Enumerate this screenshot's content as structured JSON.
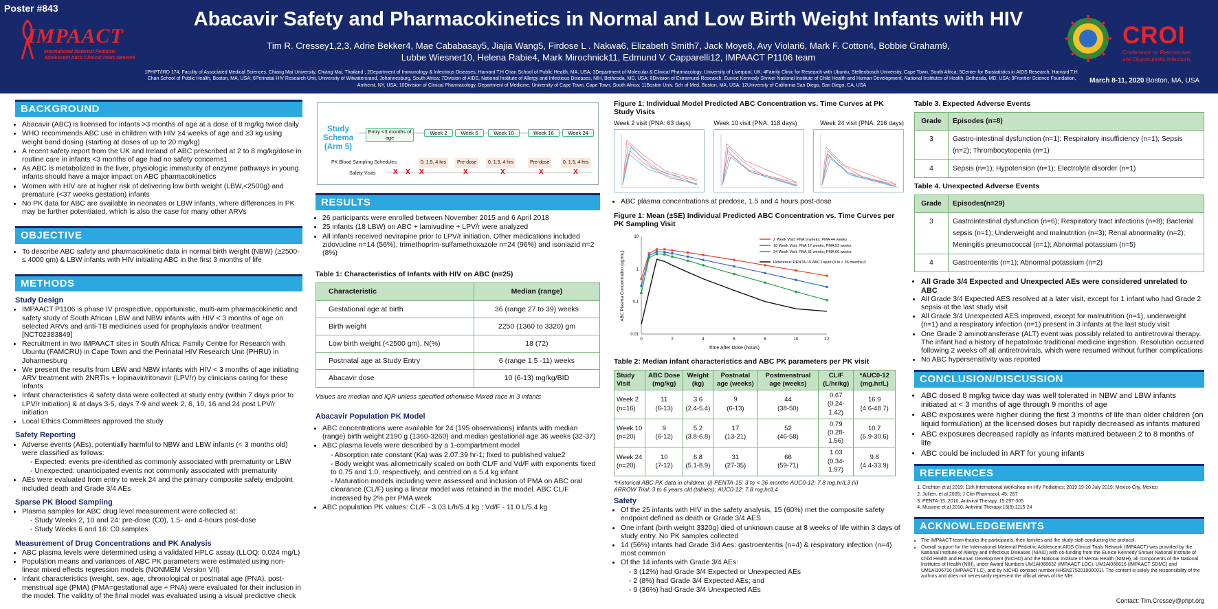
{
  "header": {
    "poster_number": "Poster #843",
    "logo_name": "IMPAACT",
    "logo_sub1": "International Maternal Pediatric",
    "logo_sub2": "Adolescent AIDS Clinical Trials Network",
    "title": "Abacavir Safety and Pharmacokinetics in Normal and Low Birth Weight Infants with HIV",
    "authors_line1": "Tim R. Cressey1,2,3, Adrie Bekker4, Mae Cababasay5, Jiajia Wang5, Firdose L . Nakwa6, Elizabeth Smith7, Jack Moye8, Avy Violari6, Mark F. Cotton4, Bobbie Graham9,",
    "authors_line2": "Lubbe Wiesner10, Helena Rabie4, Mark Mirochnick11, Edmund V. Capparelli12, IMPAACT P1106 team",
    "affiliations": "1PHPT/IRD 174, Faculty of Associated Medical Sciences, Chiang Mai University, Chiang Mai, Thailand ; 2Department of Immunology & Infectious Diseases, Harvard T.H Chan School of Public Health, MA, USA; 3Department of Molecular & Clinical Pharmacology, University of Liverpool, UK; 4Family Clinic for Research with Ubuntu, Stellenbosch University, Cape Town, South Africa; 5Center for Biostatistics in AIDS Research, Harvard T.H. Chan School of Public Health, Boston, MA, USA; 6Perinatal HIV Research Unit, University of Witwatersrand, Johannesburg, South Africa; 7Division of AIDS, National Institute of Allergy and Infectious Diseases, NIH, Bethesda, MD, USA; 8Division of Extramural Research, Eunice Kennedy Shriver National Institute of Child Health and Human Development, National Institutes of Health, Bethesda, MD, USA; 9Frontier Science Foundation, Amherst, NY, USA; 10Division of Clinical Pharmacology, Department of Medicine, University of Cape Town, Cape Town, South Africa; 11Boston Univ. Sch of Med, Boston, MA, USA; 12University of California San Diego, San Diego, CA, USA",
    "croi_name": "CROI",
    "croi_sub1": "Conference on Retroviruses",
    "croi_sub2": "and Opportunistic Infections",
    "croi_date_bold": "March 8-11, 2020",
    "croi_date_rest": " Boston, MA, USA"
  },
  "background": {
    "heading": "BACKGROUND",
    "bullets": [
      "Abacavir (ABC) is licensed for infants >3 months of age at a dose of 8 mg/kg twice daily",
      "WHO recommends ABC use in children with HIV ≥4 weeks of age and ≥3 kg using weight band dosing (starting at doses of up to 20 mg/kg)",
      "A recent safety report from the UK and Ireland of ABC prescribed at 2 to 8 mg/kg/dose in routine care in infants <3 months of age had no safety concerns1",
      "As ABC is metabolized in the liver, physiologic immaturity of enzyme pathways in young infants should have a major impact on ABC pharmacokinetics",
      "Women with HIV are at higher risk of delivering low birth weight (LBW,<2500g) and premature (<37 weeks gestation) infants",
      "No PK data for ABC are available in neonates or LBW infants, where differences in PK may be further potentiated, which is also the case for many other ARVs"
    ]
  },
  "objective": {
    "heading": "OBJECTIVE",
    "bullets": [
      "To describe ABC safety and pharmacokinetic data in normal birth weight (NBW) (≥2500-≤ 4000 gm) & LBW infants with HIV initiating ABC in the first 3 months of life"
    ]
  },
  "methods": {
    "heading": "METHODS",
    "study_design_title": "Study Design",
    "study_design": [
      "IMPAACT P1106  is phase IV prospective, opportunistic, multi-arm pharmacokinetic and safety study of South African LBW and NBW infants with HIV < 3 months of age on selected ARVs and anti-TB medicines used for prophylaxis and/or treatment [NCT02383849]",
      "Recruitment in two IMPAACT sites in South Africa: Family Centre for Research with Ubuntu (FAMCRU) in Cape Town and the Perinatal HIV Research Unit (PHRU) in Johannesburg",
      "We present the results from LBW and NBW infants with HIV < 3 months of age initiating ARV treatment with 2NRTIs + lopinavir/ritonavir (LPV/r) by clinicians caring for these infants",
      "Infant characteristics & safety data were collected at study entry (within 7 days prior to LPV/r initiation) & at days 3-5, days 7-9 and week 2, 6, 10, 16 and 24 post LPV/r initiation",
      "Local Ethics Committees approved the study"
    ],
    "safety_title": "Safety Reporting",
    "safety_1": "Adverse events (AEs), potentially harmful to NBW and LBW infants (< 3 months old) were classified as follows:",
    "safety_sub": [
      "Expected: events pre-identified as commonly associated with prematurity or LBW",
      "Unexpected: unanticipated events not commonly associated with prematurity"
    ],
    "safety_2": "AEs were evaluated from entry to week 24 and the primary composite safety endpoint included death and Grade 3/4 AEs",
    "sparse_title": "Sparse PK Blood Sampling",
    "sparse_1": "Plasma samples for ABC drug level measurement were collected at:",
    "sparse_sub": [
      "Study Weeks 2, 10 and 24: pre-dose (C0), 1.5- and 4-hours post-dose",
      "Study Weeks 6 and 16: C0 samples"
    ],
    "meas_title": "Measurement of Drug Concentrations and PK Analysis",
    "meas": [
      "ABC plasma levels were determined using a validated HPLC assay (LLOQ: 0.024 mg/L)",
      "Population means and variances of ABC PK parameters were estimated using non-linear mixed effects regression models (NONMEM Version VII)",
      "Infant characteristics (weight, sex, age, chronological or postnatal age (PNA), post-menstrual age (PMA) (PMA=gestational age + PNA) were evaluated for their inclusion in the model. The validity of the final model was evaluated using a visual predictive check"
    ]
  },
  "schema": {
    "title": "Study Schema (Arm 5)",
    "visits": [
      "Entry <3 months of age",
      "Week 2",
      "Week 6",
      "Week 10",
      "Week 16",
      "Week 24"
    ],
    "pk_label": "PK Blood Sampling Schedules",
    "pk": [
      "0, 1.5, 4 hrs",
      "Pre-dose",
      "0, 1.5, 4 hrs",
      "Pre-dose",
      "0, 1.5, 4 hrs"
    ],
    "safety_label": "Safety Visits",
    "safety_mark": "X"
  },
  "results": {
    "heading": "RESULTS",
    "bullets": [
      "26 participants were enrolled between November 2015 and 6 April 2018",
      "25 infants (18 LBW) on ABC + lamivudine + LPV/r were analyzed",
      "All infants received nevirapine prior to LPV/r initiation. Other medications included zidovudine n=14 (56%), trimethoprim-sulfamethoxazole n=24 (96%) and isoniazid n=2 (8%)"
    ],
    "table1_caption": "Table 1: Characteristics of Infants with HIV on ABC (n=25)",
    "table1_headers": [
      "Characteristic",
      "Median (range)"
    ],
    "table1_rows": [
      [
        "Gestational age at birth",
        "36 (range 27 to 39) weeks"
      ],
      [
        "Birth weight",
        "2250 (1360 to 3320) gm"
      ],
      [
        "Low birth weight (<2500 gm), N(%)",
        "18 (72)"
      ],
      [
        "Postnatal age at Study Entry",
        "6 (range 1.5 -11) weeks"
      ],
      [
        "Abacavir dose",
        "10 (6-13) mg/kg/BID"
      ]
    ],
    "table1_note": "Values are median and IQR unless specified otherwise Mixed race in 3 infants",
    "poppk_title": "Abacavir Population PK Model",
    "poppk_1": "ABC concentrations were available for 24 (195 observations) infants with median (range) birth weight 2190 g (1360-3260) and median gestational age 36 weeks (32-37)",
    "poppk_2": "ABC plasma levels were described by a 1-compartment model",
    "poppk_sub": [
      "Absorption rate constant (Ka) was 2.07.39 hr-1; fixed to published value2",
      "Body weight was allometrically scaled on both CL/F and Vd/F with exponents fixed to 0.75 and 1.0, respectively, and centred on a 5.4 kg infant",
      "Maturation models including were assessed and inclusion of PMA on ABC oral clearance (CL/F) using a linear model was retained in the model. ABC CL/F increased by 2% per PMA week"
    ],
    "poppk_3": "ABC population PK values: CL/F - 3.03 L/h/5.4 kg ; Vd/F - 11.0 L/5.4 kg"
  },
  "figure1": {
    "caption": "Figure 1: Individual Model Predicted ABC Concentration vs. Time Curves at PK Study Visits",
    "panels": [
      "Week 2 visit (PNA: 63 days)",
      "Week 10 visit (PNA: 118 days)",
      "Week 24 visit (PNA: 216 days)"
    ],
    "bullet": "ABC plasma concentrations at predose, 1.5 and 4 hours post-dose"
  },
  "figure2": {
    "caption": "Figure 1: Mean (±SE) Individual Predicted ABC Concentration vs. Time Curves per PK Sampling Visit",
    "xlabel": "Time After Dose (hours)",
    "ylabel": "ABC Plasma Concentration (ug/mL)",
    "legend": [
      "2 Week Visit:  PNA 9 weeks;    PMA 44 weeks",
      "10 Week Visit: PNA 17 weeks;  PMA 52 weeks",
      "24 Week Visit: PNA 31 weeks;  PMA 66 weeks"
    ],
    "reference_label": "Reference: PENTA-15 ABC Liquid (3 to < 36 months)3",
    "y_ticks": [
      "10",
      "1",
      "0.1",
      "0.01"
    ],
    "x_ticks": [
      "0",
      "2",
      "4",
      "6",
      "8",
      "10",
      "12"
    ]
  },
  "chart_data": {
    "type": "line",
    "title": "Figure 1: Mean (±SE) Individual Predicted ABC Concentration vs. Time Curves per PK Sampling Visit",
    "xlabel": "Time After Dose (hours)",
    "ylabel": "ABC Plasma Concentration (ug/mL)",
    "yscale": "log",
    "xlim": [
      0,
      12
    ],
    "ylim": [
      0.01,
      10
    ],
    "series": [
      {
        "name": "2 Week Visit:  PNA 9 weeks;    PMA 44 weeks",
        "color": "#e8472b",
        "x": [
          0,
          0.5,
          1,
          1.5,
          2,
          3,
          4,
          6,
          8,
          10,
          12
        ],
        "y": [
          0.5,
          3.0,
          4.0,
          4.0,
          3.7,
          3.2,
          2.7,
          1.9,
          1.3,
          0.9,
          0.62
        ]
      },
      {
        "name": "10 Week Visit: PNA 17 weeks;  PMA 52 weeks",
        "color": "#2f6bd8",
        "x": [
          0,
          0.5,
          1,
          1.5,
          2,
          3,
          4,
          6,
          8,
          10,
          12
        ],
        "y": [
          0.3,
          2.6,
          3.4,
          3.3,
          3.0,
          2.4,
          1.9,
          1.2,
          0.75,
          0.46,
          0.28
        ]
      },
      {
        "name": "24 Week Visit: PNA 31 weeks;  PMA 66 weeks",
        "color": "#23a04a",
        "x": [
          0,
          0.5,
          1,
          1.5,
          2,
          3,
          4,
          6,
          8,
          10,
          12
        ],
        "y": [
          0.18,
          2.2,
          2.9,
          2.8,
          2.4,
          1.8,
          1.3,
          0.7,
          0.38,
          0.2,
          0.11
        ]
      },
      {
        "name": "Reference: PENTA-15 ABC Liquid (3 to < 36 months)3",
        "color": "#111111",
        "x": [
          0,
          1,
          1.5,
          2,
          3,
          4,
          6,
          8,
          10,
          12
        ],
        "y": [
          0.02,
          2.0,
          1.7,
          1.3,
          0.8,
          0.5,
          0.22,
          0.1,
          0.06,
          0.05
        ]
      }
    ]
  },
  "table2": {
    "caption": "Table 2: Median infant characteristics and ABC PK parameters per PK visit",
    "headers": [
      "Study Visit",
      "ABC Dose (mg/kg)",
      "Weight (kg)",
      "Postnatal age (weeks)",
      "Postmenstrual age (weeks)",
      "CL/F (L/hr/kg)",
      "*AUC0-12 (mg.hr/L)"
    ],
    "rows": [
      [
        "Week 2 (n=16)",
        "11\n(6-13)",
        "3.6\n(2.4-5.4)",
        "9\n(6-13)",
        "44\n(38-50)",
        "0.67\n(0.24-1.42)",
        "16.9\n(4.6-48.7)"
      ],
      [
        "Week 10 (n=20)",
        "9\n(6-12)",
        "5.2\n(3.8-6.8)",
        "17\n(13-21)",
        "52\n(46-58)",
        "0.79\n(0.28-1.56)",
        "10.7\n(6.9-30.6)"
      ],
      [
        "Week 24 (n=20)",
        "10\n(7-12)",
        "6.8\n(5.1-8.9)",
        "31\n(27-35)",
        "66\n(59-71)",
        "1.03\n(0.34-1.97)",
        "9.8\n(4.4-33.9)"
      ]
    ],
    "note1": "*Historical ABC PK data in children: (i) PENTA-15: 3 to < 36 months AUC0-12: 7.8 mg.hr/L3 (ii)",
    "note2": "ARROW Trial:  3 to 6 years old (tablets): AUC0-12: 7.8 mg.hr/L4"
  },
  "safety": {
    "title": "Safety",
    "b1": "Of the 25 infants with HIV in the safety analysis, 15 (60%) met the composite safety endpoint defined as death or Grade 3/4 AES",
    "b2": "One infant (birth weight 3320g) died of unknown cause at 8 weeks of life within 3 days of study entry. No PK samples collected",
    "b3": "14 (56%) infants had Grade 3/4 Aes: gastroenteritis (n=4) & respiratory infection (n=4) most common",
    "b4": "Of the 14 infants with Grade 3/4 AEs:",
    "sub": [
      "3 (12%) had Grade 3/4 Expected or Unexpected AEs",
      "2 (8%) had Grade 3/4 Expected AEs; and",
      "9 (36%) had Grade 3/4 Unexpected AEs"
    ]
  },
  "table3": {
    "caption": "Table 3. Expected Adverse Events",
    "headers": [
      "Grade",
      "Episodes (n=8)"
    ],
    "rows": [
      [
        "3",
        "Gastro-intestinal dysfunction (n=1); Respiratory insufficiency (n=1); Sepsis (n=2); Thrombocytopenia (n=1)"
      ],
      [
        "4",
        "Sepsis (n=1); Hypotension (n=1); Electrolyte disorder (n=1)"
      ]
    ]
  },
  "table4": {
    "caption": "Table 4. Unexpected Adverse Events",
    "headers": [
      "Grade",
      "Episodes(n=29)"
    ],
    "rows": [
      [
        "3",
        "Gastrointestinal dysfunction (n=6); Respiratory tract infections (n=8); Bacterial sepsis (n=1); Underweight and malnutrition (n=3); Renal abnormality (n=2); Meningitis pneumococcal (n=1); Abnormal potassium (n=5)"
      ],
      [
        "4",
        "Gastroenteritis (n=1); Abnormal potassium (n=2)"
      ]
    ]
  },
  "ae_summary": {
    "bold": "All Grade 3/4 Expected and Unexpected AEs were considered unrelated to ABC",
    "bullets": [
      "All Grade 3/4 Expected AES resolved at a later visit, except for 1 infant who had Grade 2 sepsis at the last study visit",
      "All Grade 3/4 Unexpected AES improved, except for malnutrition (n=1), underweight (n=1) and a respiratory infection (n=1) present in 3 infants at the last study visit",
      "One Grade 2 aminotransferase (ALT) event was possibly related to antiretroviral therapy. The infant had a history of hepatotoxic traditional medicine ingestion. Resolution occurred following 2 weeks off all antiretrovirals, which were resumed without further complications",
      "No ABC hypersensitivity was reported"
    ]
  },
  "conclusion": {
    "heading": "CONCLUSION/DISCUSSION",
    "bullets": [
      "ABC dosed 8 mg/kg twice day was well tolerated in NBW and LBW infants initiated at < 3 months of age through 9 months of age",
      "ABC exposures were higher during the first 3 months of life than older children (on liquid formulation) at the licensed doses but rapidly decreased as infants matured",
      "ABC exposures decreased rapidly as infants matured between 2 to 8 months of life",
      "ABC could be included in ART for young infants"
    ]
  },
  "references": {
    "heading": "REFERENCES",
    "items": [
      "Crichton et al 2019; 11th International Workshop on HIV Pediatrics; 2019 19-20 July 2019; Mexico City, Mexico",
      "Jullien, et al 2005; J Clin Pharmacol, 45: 257",
      "PENTA-15: 2010, Antiviral Therapy, 15:297-305",
      "Musiime et al 2010, Antiviral Therapy;15(8):1115-24"
    ]
  },
  "acknowledgements": {
    "heading": "ACKNOWLEDGEMENTS",
    "items": [
      "The IMPAACT team thanks the participants, their families and the study staff conducting the protocol.",
      "Overall support for the International Maternal Pediatric Adolescent AIDS Clinical Trials Network (IMPAACT) was provided by the National Institute of Allergy and Infectious Diseases (NIAID) with co-funding from the Eunice Kennedy Shriver National Institute of Child Health and Human Development (NICHD) and the National Institute of Mental Health (NIMH), all components of the National Institutes of Health (NIH), under Award Numbers UM1AI068632 (IMPAACT LOC), UM1AI068616 (IMPAACT SDMC) and UM1AI106716 (IMPAACT LC), and by NICHD contract number HHSN275201800001I. The content is solely the responsibility of the authors and does not necessarily represent the official views of the NIH."
    ],
    "contact": "Contact: Tim.Cressey@phpt.org"
  },
  "colors": {
    "header_bg": "#17296b",
    "section_bg": "#2aa8df",
    "table_header": "#c5e2c5",
    "accent_red": "#e5252b"
  }
}
